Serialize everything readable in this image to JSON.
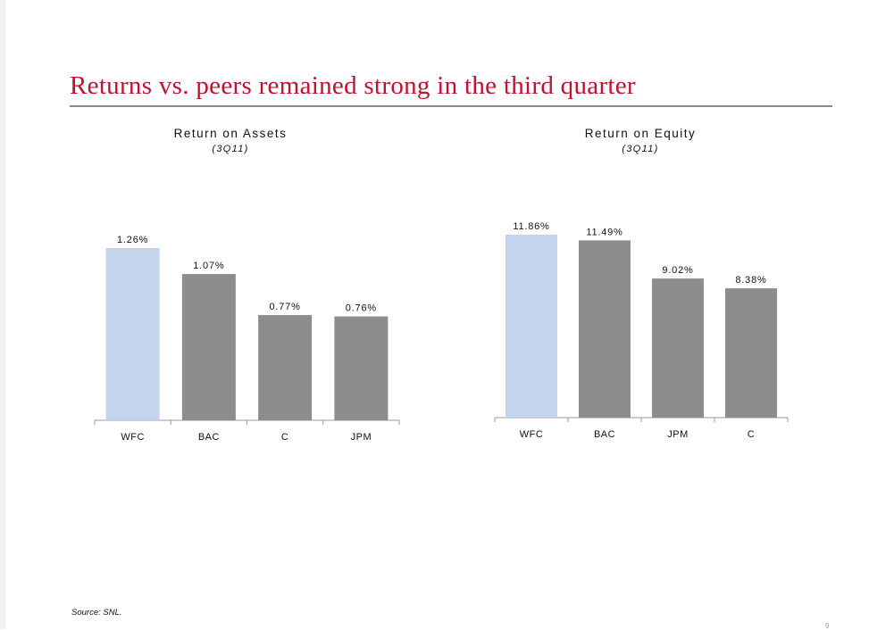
{
  "slide": {
    "title": "Returns vs. peers remained strong in the third quarter",
    "source": "Source: SNL.",
    "page_number": "9"
  },
  "colors": {
    "title": "#c0112f",
    "highlight_bar": "#c3d4ec",
    "peer_bar": "#8c8d8e",
    "rule": "#8a8a8a"
  },
  "chart_data": [
    {
      "type": "bar",
      "title": "Return on Assets",
      "subtitle": "(3Q11)",
      "categories": [
        "WFC",
        "BAC",
        "C",
        "JPM"
      ],
      "values": [
        1.26,
        1.07,
        0.77,
        0.76
      ],
      "labels": [
        "1.26%",
        "1.07%",
        "0.77%",
        "0.76%"
      ],
      "highlight": "WFC",
      "ylim": [
        0,
        1.26
      ],
      "xlabel": "",
      "ylabel": "",
      "grid": false,
      "legend": "none"
    },
    {
      "type": "bar",
      "title": "Return on Equity",
      "subtitle": "(3Q11)",
      "categories": [
        "WFC",
        "BAC",
        "JPM",
        "C"
      ],
      "values": [
        11.86,
        11.49,
        9.02,
        8.38
      ],
      "labels": [
        "11.86%",
        "11.49%",
        "9.02%",
        "8.38%"
      ],
      "highlight": "WFC",
      "ylim": [
        0,
        11.86
      ],
      "xlabel": "",
      "ylabel": "",
      "grid": false,
      "legend": "none"
    }
  ]
}
